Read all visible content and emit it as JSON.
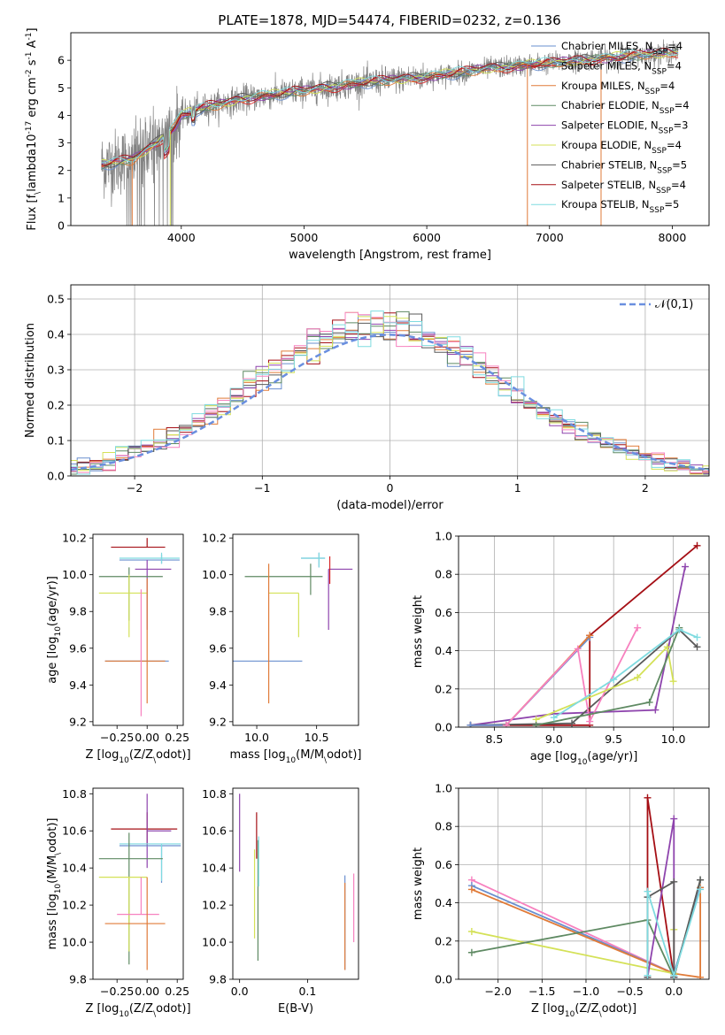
{
  "title": "PLATE=1878, MJD=54474, FIBERID=0232, z=0.136",
  "colors": {
    "Chabrier MILES": "#6a8fcf",
    "Salpeter MILES": "#d62728",
    "Kroupa MILES": "#e07b39",
    "Chabrier ELODIE": "#5f8a63",
    "Salpeter ELODIE": "#8e44ad",
    "Kroupa ELODIE": "#d4e157",
    "Chabrier STELIB": "#5a5a5a",
    "Salpeter STELIB": "#a50f15",
    "Kroupa STELIB": "#7fdbe0",
    "pink": "#f781bf"
  },
  "chart_data": [
    {
      "type": "line",
      "xlabel": "wavelength [Angstrom, rest frame]",
      "ylabel": "Flux [f$_\\lambda$10$^{-17}$ erg cm$^{-2}$ s$^{-1}$ A$^{-1}$]",
      "xlim": [
        3100,
        8300
      ],
      "ylim": [
        0,
        7
      ],
      "xticks": [
        4000,
        5000,
        6000,
        7000,
        8000
      ],
      "yticks": [
        0,
        1,
        2,
        3,
        4,
        5,
        6
      ],
      "grid": false,
      "legend_position": "right",
      "data_range_wavelength": [
        3350,
        8050
      ],
      "continuum_anchor_points": [
        [
          3350,
          2.2
        ],
        [
          3600,
          2.4
        ],
        [
          3800,
          3.0
        ],
        [
          3950,
          3.6
        ],
        [
          4000,
          4.0
        ],
        [
          4200,
          4.3
        ],
        [
          4500,
          4.6
        ],
        [
          5000,
          4.9
        ],
        [
          5500,
          5.2
        ],
        [
          6000,
          5.4
        ],
        [
          6500,
          5.7
        ],
        [
          7000,
          5.9
        ],
        [
          7500,
          6.1
        ],
        [
          8050,
          6.3
        ]
      ],
      "series": [
        {
          "name": "Chabrier MILES",
          "nssp": "4"
        },
        {
          "name": "Salpeter MILES",
          "nssp": "4"
        },
        {
          "name": "Kroupa MILES",
          "nssp": "4"
        },
        {
          "name": "Chabrier ELODIE",
          "nssp": "4"
        },
        {
          "name": "Salpeter ELODIE",
          "nssp": "3"
        },
        {
          "name": "Kroupa ELODIE",
          "nssp": "4"
        },
        {
          "name": "Chabrier STELIB",
          "nssp": "5"
        },
        {
          "name": "Salpeter STELIB",
          "nssp": "4"
        },
        {
          "name": "Kroupa STELIB",
          "nssp": "5"
        }
      ]
    },
    {
      "type": "step",
      "xlabel": "(data-model)/error",
      "ylabel": "Normed distribution",
      "xlim": [
        -2.5,
        2.5
      ],
      "ylim": [
        0,
        0.54
      ],
      "xticks": [
        -2,
        -1,
        0,
        1,
        2
      ],
      "yticks": [
        0.0,
        0.1,
        0.2,
        0.3,
        0.4,
        0.5
      ],
      "grid": true,
      "legend": "$\\mathcal{N}(0,1)$",
      "legend_position": "upper right",
      "bin_width": 0.1
    },
    {
      "type": "errorbar",
      "xlabel": "Z [log$_{10}$(Z/Z$_\\odot$)]",
      "ylabel": "age  [log$_{10}$(age/yr)]",
      "xlim": [
        -0.45,
        0.3
      ],
      "ylim": [
        9.18,
        10.22
      ],
      "xticks": [
        -0.25,
        0.0,
        0.25
      ],
      "yticks": [
        9.2,
        9.4,
        9.6,
        9.8,
        10.0,
        10.2
      ],
      "points": [
        {
          "color": "Salpeter STELIB",
          "x": 0.0,
          "xerr": [
            0.3,
            0.15
          ],
          "y": 10.15,
          "yerr": [
            0.0,
            0.05
          ]
        },
        {
          "color": "Chabrier MILES",
          "x": 0.12,
          "xerr": [
            0.35,
            0.15
          ],
          "y": 10.08,
          "yerr": [
            0.02,
            0.03
          ]
        },
        {
          "color": "Kroupa STELIB",
          "x": 0.12,
          "xerr": [
            0.35,
            0.15
          ],
          "y": 10.09,
          "yerr": [
            0.03,
            0.03
          ]
        },
        {
          "color": "Salpeter ELODIE",
          "x": 0.0,
          "xerr": [
            0.1,
            0.2
          ],
          "y": 10.03,
          "yerr": [
            0.33,
            0.05
          ]
        },
        {
          "color": "Chabrier ELODIE",
          "x": -0.15,
          "xerr": [
            0.25,
            0.28
          ],
          "y": 9.99,
          "yerr": [
            0.24,
            0.05
          ]
        },
        {
          "color": "Kroupa ELODIE",
          "x": -0.15,
          "xerr": [
            0.25,
            0.15
          ],
          "y": 9.9,
          "yerr": [
            0.24,
            0.1
          ]
        },
        {
          "color": "Chabrier MILES",
          "x": -0.1,
          "xerr": [
            0.25,
            0.28
          ],
          "y": 9.53,
          "yerr": [
            0.0,
            0.0
          ]
        },
        {
          "color": "Kroupa MILES",
          "x": 0.0,
          "xerr": [
            0.35,
            0.15
          ],
          "y": 9.53,
          "yerr": [
            0.23,
            0.45
          ]
        },
        {
          "color": "pink",
          "x": -0.05,
          "xerr": [
            0.0,
            0.0
          ],
          "y": 9.5,
          "yerr": [
            0.27,
            0.42
          ]
        }
      ]
    },
    {
      "type": "errorbar",
      "xlabel": "mass [log$_{10}$(M/M$_\\odot$)]",
      "ylabel": "",
      "xlim": [
        9.8,
        10.85
      ],
      "ylim": [
        9.18,
        10.22
      ],
      "xticks": [
        10.0,
        10.5
      ],
      "yticks": [
        9.2,
        9.4,
        9.6,
        9.8,
        10.0,
        10.2
      ],
      "points": [
        {
          "color": "Chabrier MILES",
          "x": 10.52,
          "xerr": [
            0.15,
            0.05
          ],
          "y": 10.09,
          "yerr": [
            0.05,
            0.03
          ]
        },
        {
          "color": "Kroupa STELIB",
          "x": 10.52,
          "xerr": [
            0.15,
            0.05
          ],
          "y": 10.09,
          "yerr": [
            0.05,
            0.03
          ]
        },
        {
          "color": "Salpeter ELODIE",
          "x": 10.6,
          "xerr": [
            0.0,
            0.2
          ],
          "y": 10.03,
          "yerr": [
            0.33,
            0.0
          ]
        },
        {
          "color": "Chabrier ELODIE",
          "x": 10.45,
          "xerr": [
            0.55,
            0.1
          ],
          "y": 9.99,
          "yerr": [
            0.1,
            0.07
          ]
        },
        {
          "color": "Kroupa ELODIE",
          "x": 10.35,
          "xerr": [
            0.25,
            0.0
          ],
          "y": 9.9,
          "yerr": [
            0.24,
            0.0
          ]
        },
        {
          "color": "Chabrier MILES",
          "x": 10.1,
          "xerr": [
            0.3,
            0.28
          ],
          "y": 9.53,
          "yerr": [
            0.0,
            0.0
          ]
        },
        {
          "color": "Kroupa MILES",
          "x": 10.1,
          "xerr": [
            0.0,
            0.0
          ],
          "y": 9.53,
          "yerr": [
            0.23,
            0.53
          ]
        },
        {
          "color": "Salpeter MILES",
          "x": 10.61,
          "xerr": [
            0.0,
            0.0
          ],
          "y": 10.0,
          "yerr": [
            0.05,
            0.1
          ]
        }
      ]
    },
    {
      "type": "line",
      "xlabel": "age  [log$_{10}$(age/yr)]",
      "ylabel": "mass weight",
      "xlim": [
        8.2,
        10.3
      ],
      "ylim": [
        0,
        1.0
      ],
      "xticks": [
        8.5,
        9.0,
        9.5,
        10.0
      ],
      "yticks": [
        0.0,
        0.2,
        0.4,
        0.6,
        0.8,
        1.0
      ],
      "grid": true,
      "series": [
        {
          "color": "Salpeter STELIB",
          "x": [
            8.3,
            9.3,
            9.3,
            10.2
          ],
          "y": [
            0.01,
            0.01,
            0.48,
            0.95
          ]
        },
        {
          "color": "Salpeter ELODIE",
          "x": [
            8.3,
            9.0,
            9.85,
            10.1
          ],
          "y": [
            0.01,
            0.07,
            0.09,
            0.84
          ]
        },
        {
          "color": "Chabrier STELIB",
          "x": [
            8.3,
            9.15,
            10.05,
            10.2
          ],
          "y": [
            0.01,
            0.02,
            0.51,
            0.42
          ]
        },
        {
          "color": "Chabrier MILES",
          "x": [
            8.3,
            8.6,
            9.3
          ],
          "y": [
            0.01,
            0.01,
            0.47
          ]
        },
        {
          "color": "Kroupa MILES",
          "x": [
            8.6,
            9.3
          ],
          "y": [
            0.01,
            0.48
          ]
        },
        {
          "color": "pink",
          "x": [
            8.6,
            9.2,
            9.3,
            9.7
          ],
          "y": [
            0.01,
            0.41,
            0.03,
            0.52
          ]
        },
        {
          "color": "Kroupa ELODIE",
          "x": [
            8.85,
            9.7,
            9.95,
            10.0
          ],
          "y": [
            0.04,
            0.26,
            0.42,
            0.24
          ]
        },
        {
          "color": "Chabrier ELODIE",
          "x": [
            8.85,
            9.8,
            10.05
          ],
          "y": [
            0.01,
            0.13,
            0.52
          ]
        },
        {
          "color": "Kroupa STELIB",
          "x": [
            9.0,
            9.5,
            10.05,
            10.2
          ],
          "y": [
            0.05,
            0.25,
            0.51,
            0.47
          ]
        }
      ]
    },
    {
      "type": "errorbar",
      "xlabel": "Z [log$_{10}$(Z/Z$_\\odot$)]",
      "ylabel": "mass [log$_{10}$(M/M$_\\odot$)]",
      "xlim": [
        -0.45,
        0.3
      ],
      "ylim": [
        9.8,
        10.83
      ],
      "xticks": [
        -0.25,
        0.0,
        0.25
      ],
      "yticks": [
        9.8,
        10.0,
        10.2,
        10.4,
        10.6,
        10.8
      ],
      "points": [
        {
          "color": "Salpeter STELIB",
          "x": 0.0,
          "xerr": [
            0.3,
            0.25
          ],
          "y": 10.61,
          "yerr": [
            0.09,
            0.09
          ]
        },
        {
          "color": "Salpeter ELODIE",
          "x": 0.0,
          "xerr": [
            0.0,
            0.2
          ],
          "y": 10.6,
          "yerr": [
            0.2,
            0.2
          ]
        },
        {
          "color": "Chabrier MILES",
          "x": 0.12,
          "xerr": [
            0.35,
            0.16
          ],
          "y": 10.52,
          "yerr": [
            0.2,
            0.0
          ]
        },
        {
          "color": "Kroupa STELIB",
          "x": 0.12,
          "xerr": [
            0.35,
            0.16
          ],
          "y": 10.53,
          "yerr": [
            0.2,
            0.0
          ]
        },
        {
          "color": "Chabrier ELODIE",
          "x": -0.15,
          "xerr": [
            0.25,
            0.28
          ],
          "y": 10.45,
          "yerr": [
            0.57,
            0.14
          ]
        },
        {
          "color": "Kroupa ELODIE",
          "x": -0.15,
          "xerr": [
            0.25,
            0.15
          ],
          "y": 10.35,
          "yerr": [
            0.4,
            0.0
          ]
        },
        {
          "color": "pink",
          "x": -0.05,
          "xerr": [
            0.2,
            0.15
          ],
          "y": 10.15,
          "yerr": [
            0.0,
            0.2
          ]
        },
        {
          "color": "Kroupa MILES",
          "x": 0.0,
          "xerr": [
            0.35,
            0.15
          ],
          "y": 10.1,
          "yerr": [
            0.25,
            0.25
          ]
        }
      ]
    },
    {
      "type": "errorbar",
      "xlabel": "E(B-V)",
      "ylabel": "",
      "xlim": [
        -0.01,
        0.175
      ],
      "ylim": [
        9.8,
        10.83
      ],
      "xticks": [
        0.0,
        0.1
      ],
      "yticks": [
        9.8,
        10.0,
        10.2,
        10.4,
        10.6,
        10.8
      ],
      "points": [
        {
          "color": "Salpeter ELODIE",
          "x": 0.0,
          "y": 10.6,
          "yerr": [
            0.22,
            0.2
          ]
        },
        {
          "color": "Salpeter STELIB",
          "x": 0.025,
          "y": 10.6,
          "yerr": [
            0.15,
            0.1
          ]
        },
        {
          "color": "Chabrier ELODIE",
          "x": 0.027,
          "y": 10.3,
          "yerr": [
            0.4,
            0.25
          ]
        },
        {
          "color": "Kroupa ELODIE",
          "x": 0.022,
          "y": 10.4,
          "yerr": [
            0.38,
            0.1
          ]
        },
        {
          "color": "Kroupa STELIB",
          "x": 0.028,
          "y": 10.45,
          "yerr": [
            0.15,
            0.12
          ]
        },
        {
          "color": "Chabrier MILES",
          "x": 0.155,
          "y": 10.3,
          "yerr": [
            0.45,
            0.06
          ]
        },
        {
          "color": "Kroupa MILES",
          "x": 0.155,
          "y": 10.2,
          "yerr": [
            0.35,
            0.12
          ]
        },
        {
          "color": "pink",
          "x": 0.168,
          "y": 10.2,
          "yerr": [
            0.2,
            0.17
          ]
        }
      ]
    },
    {
      "type": "line",
      "xlabel": "Z [log$_{10}$(Z/Z$_\\odot$)]",
      "ylabel": "mass weight",
      "xlim": [
        -2.45,
        0.4
      ],
      "ylim": [
        0,
        1.0
      ],
      "xticks": [
        -2.0,
        -1.5,
        -1.0,
        -0.5,
        0.0
      ],
      "yticks": [
        0.0,
        0.2,
        0.4,
        0.6,
        0.8,
        1.0
      ],
      "grid": true,
      "series": [
        {
          "color": "pink",
          "x": [
            -2.3,
            0.0
          ],
          "y": [
            0.52,
            0.03
          ]
        },
        {
          "color": "Chabrier MILES",
          "x": [
            -2.3,
            0.0,
            0.3
          ],
          "y": [
            0.49,
            0.03,
            0.48
          ]
        },
        {
          "color": "Kroupa MILES",
          "x": [
            -2.3,
            0.0,
            0.3,
            0.3
          ],
          "y": [
            0.47,
            0.03,
            0.01,
            0.48
          ]
        },
        {
          "color": "Kroupa ELODIE",
          "x": [
            -2.3,
            0.0,
            0.0
          ],
          "y": [
            0.25,
            0.03,
            0.26
          ]
        },
        {
          "color": "Chabrier ELODIE",
          "x": [
            -2.3,
            -0.3,
            0.0,
            0.3
          ],
          "y": [
            0.14,
            0.31,
            0.01,
            0.52
          ]
        },
        {
          "color": "Salpeter STELIB",
          "x": [
            -0.3,
            -0.3,
            0.0
          ],
          "y": [
            0.01,
            0.95,
            0.01
          ]
        },
        {
          "color": "Salpeter ELODIE",
          "x": [
            -0.3,
            0.0,
            0.0
          ],
          "y": [
            0.01,
            0.84,
            0.01
          ]
        },
        {
          "color": "Chabrier STELIB",
          "x": [
            -0.3,
            -0.3,
            0.0,
            0.0,
            0.3
          ],
          "y": [
            0.01,
            0.43,
            0.51,
            0.01,
            0.52
          ]
        },
        {
          "color": "Kroupa STELIB",
          "x": [
            -0.3,
            -0.3,
            0.0,
            0.3
          ],
          "y": [
            0.02,
            0.46,
            0.02,
            0.47
          ]
        }
      ]
    }
  ]
}
